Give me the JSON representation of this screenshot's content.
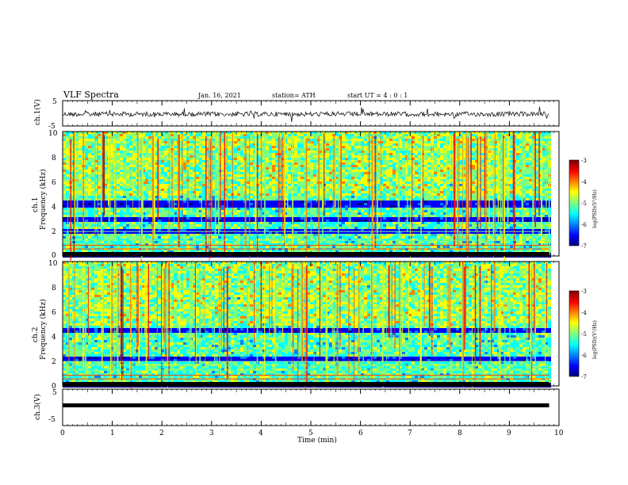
{
  "header": {
    "title": "VLF Spectra",
    "date": "Jan. 16, 2021",
    "station": "station= ATH",
    "start": "start  UT =  4 : 0  : 1"
  },
  "chart_data": [
    {
      "type": "line",
      "name": "ch1-waveform",
      "ylabel": "ch.1(V)",
      "ylim": [
        -5,
        5
      ],
      "yticks": [
        "5",
        "-5"
      ],
      "x_range_min": [
        0,
        9.8
      ],
      "mean_v": 0
    },
    {
      "type": "heatmap",
      "name": "ch1-spectrogram",
      "ylabel_top": "ch.1",
      "ylabel": "Frequency (kHz)",
      "ylim": [
        0,
        10
      ],
      "yticks": [
        "0",
        "2",
        "4",
        "6",
        "8",
        "10"
      ],
      "colorbar": {
        "label": "log(PSD)(V²/Hz)",
        "range": [
          -7,
          -3
        ],
        "ticks": [
          "-3",
          "-4",
          "-5",
          "-6",
          "-7"
        ]
      },
      "dark_bands_khz": [
        [
          4.0,
          4.6
        ],
        [
          2.8,
          3.3
        ],
        [
          1.9,
          2.2
        ]
      ]
    },
    {
      "type": "heatmap",
      "name": "ch2-spectrogram",
      "ylabel_top": "ch.2",
      "ylabel": "Frequency (kHz)",
      "ylim": [
        0,
        10
      ],
      "yticks": [
        "0",
        "2",
        "4",
        "6",
        "8",
        "10"
      ],
      "colorbar": {
        "label": "log(PSD)(V²/Hz)",
        "range": [
          -7,
          -3
        ],
        "ticks": [
          "-3",
          "-4",
          "-5",
          "-6",
          "-7"
        ]
      },
      "dark_bands_khz": [
        [
          4.4,
          4.8
        ],
        [
          2.1,
          2.5
        ]
      ]
    },
    {
      "type": "line",
      "name": "ch3-waveform",
      "ylabel": "ch.3(V)",
      "ylim": [
        -5,
        5
      ],
      "yticks": [
        "5",
        "-5"
      ],
      "mean_v": -1.3
    }
  ],
  "xaxis": {
    "label": "Time  (min)",
    "range": [
      0,
      10
    ],
    "ticks": [
      "0",
      "1",
      "2",
      "3",
      "4",
      "5",
      "6",
      "7",
      "8",
      "9",
      "10"
    ]
  },
  "colors": {
    "jet": [
      "#00007f",
      "#0000ff",
      "#007fff",
      "#00ffff",
      "#7fff7f",
      "#ffff00",
      "#ff7f00",
      "#ff0000",
      "#7f0000"
    ]
  }
}
